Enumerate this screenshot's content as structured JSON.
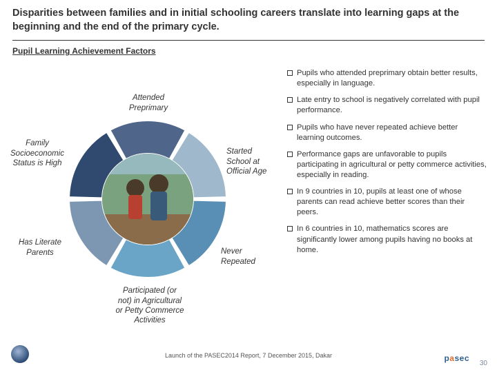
{
  "title": "Disparities between families and in initial schooling careers translate into learning gaps at the beginning and the end of the primary cycle.",
  "subtitle": "Pupil Learning Achievement Factors",
  "wheel": {
    "type": "donut",
    "segments": [
      {
        "color": "#4f668a",
        "label": "Attended Preprimary"
      },
      {
        "color": "#a0b8cc",
        "label": "Started School at Official Age"
      },
      {
        "color": "#5a8fb5",
        "label": "Never Repeated"
      },
      {
        "color": "#6aa5c7",
        "label": "Participated (or not) in Agricultural or Petty Commerce Activities"
      },
      {
        "color": "#7d97b3",
        "label": "Has Literate Parents"
      },
      {
        "color": "#2f4a6e",
        "label": "Family Socioeconomic Status is High"
      }
    ],
    "ring_outer": 114,
    "ring_inner": 66,
    "gap_color": "#ffffff",
    "inner_photo_bg": "#6a8a70"
  },
  "labels": {
    "top": "Attended\nPreprimary",
    "right": "Started\nSchool at\nOfficial Age",
    "br": "Never\nRepeated",
    "bottom": "Participated (or\nnot) in Agricultural\nor Petty Commerce\nActivities",
    "bl": "Has Literate\nParents",
    "left": "Family\nSocioeconomic\nStatus is High"
  },
  "bullets": [
    "Pupils who attended preprimary obtain better results, especially in language.",
    "Late entry to school is negatively correlated with pupil performance.",
    "Pupils who have never repeated achieve better learning outcomes.",
    "Performance gaps are unfavorable to pupils participating in agricultural or petty commerce activities, especially in reading.",
    "In 9 countries in 10, pupils at least one of whose parents can read achieve better scores than their peers.",
    "In 6 countries in 10, mathematics scores are significantly lower among pupils having no books at home."
  ],
  "footer": "Launch of the PASEC2014 Report, 7 December 2015, Dakar",
  "page_number": "30",
  "logo_text": {
    "p1": "p",
    "a": "a",
    "rest": "sec"
  },
  "styling": {
    "title_fontsize_pt": 14.5,
    "subtitle_fontsize_pt": 12,
    "label_fontsize_pt": 11.5,
    "bullet_fontsize_pt": 11.2,
    "footer_fontsize_pt": 9,
    "text_color": "#333333",
    "rule_color": "#333333",
    "background": "#ffffff"
  }
}
